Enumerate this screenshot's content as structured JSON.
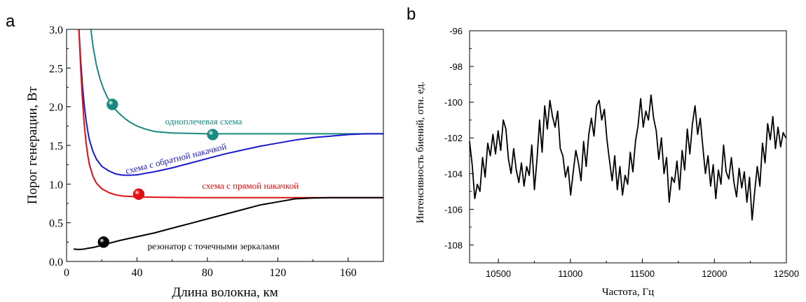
{
  "chart_data": [
    {
      "panel_label": "a",
      "type": "line",
      "xlabel": "Длина волокна, км",
      "ylabel": "Порог генерации, Вт",
      "xlim": [
        0,
        180
      ],
      "ylim": [
        0,
        3.0
      ],
      "xticks": [
        0,
        40,
        80,
        120,
        160
      ],
      "yticks": [
        "0.0",
        "0.5",
        "1.0",
        "1.5",
        "2.0",
        "2.5",
        "3.0"
      ],
      "grid": false,
      "series": [
        {
          "name": "одноплечевая схема",
          "color": "#1a8a80",
          "x": [
            13.8,
            15,
            17,
            19,
            21,
            23,
            25,
            27,
            30,
            33,
            36,
            40,
            45,
            50,
            55,
            60,
            70,
            80,
            90,
            100,
            120,
            140,
            160,
            180
          ],
          "y": [
            3.0,
            2.78,
            2.53,
            2.36,
            2.23,
            2.13,
            2.05,
            1.98,
            1.91,
            1.85,
            1.8,
            1.75,
            1.71,
            1.68,
            1.67,
            1.66,
            1.655,
            1.65,
            1.65,
            1.65,
            1.65,
            1.65,
            1.65,
            1.65
          ],
          "marker": {
            "x": 26,
            "y": 2.03
          },
          "marker2": {
            "x": 83,
            "y": 1.64
          }
        },
        {
          "name": "схема с обратной накачкой",
          "color": "#1a1acc",
          "x": [
            7,
            8,
            9,
            10,
            11,
            12,
            13,
            15,
            17,
            20,
            24,
            28,
            32,
            36,
            40,
            45,
            50,
            60,
            70,
            80,
            90,
            100,
            110,
            120,
            130,
            140,
            150,
            160,
            170,
            180
          ],
          "y": [
            3.0,
            2.6,
            2.28,
            2.03,
            1.84,
            1.69,
            1.57,
            1.42,
            1.32,
            1.23,
            1.17,
            1.13,
            1.115,
            1.115,
            1.12,
            1.14,
            1.16,
            1.21,
            1.27,
            1.33,
            1.39,
            1.44,
            1.49,
            1.53,
            1.57,
            1.6,
            1.62,
            1.64,
            1.65,
            1.65
          ]
        },
        {
          "name": "схема с прямой накачкой",
          "color": "#e01010",
          "x": [
            7,
            8,
            9,
            10,
            11,
            12,
            13,
            15,
            17,
            20,
            24,
            28,
            32,
            36,
            40,
            45,
            50,
            60,
            70,
            80,
            100,
            120,
            140,
            160,
            180
          ],
          "y": [
            3.0,
            2.5,
            2.1,
            1.78,
            1.55,
            1.38,
            1.25,
            1.1,
            1.01,
            0.94,
            0.89,
            0.86,
            0.845,
            0.84,
            0.835,
            0.832,
            0.83,
            0.828,
            0.826,
            0.825,
            0.825,
            0.825,
            0.825,
            0.825,
            0.825
          ],
          "marker": {
            "x": 41,
            "y": 0.87
          }
        },
        {
          "name": "резонатор  с точечными зеркалами",
          "color": "#000000",
          "x": [
            4,
            6,
            8,
            10,
            12,
            15,
            20,
            30,
            40,
            50,
            60,
            70,
            80,
            90,
            100,
            110,
            120,
            130,
            140,
            150,
            160,
            170,
            180
          ],
          "y": [
            0.16,
            0.155,
            0.155,
            0.16,
            0.17,
            0.18,
            0.21,
            0.27,
            0.32,
            0.37,
            0.43,
            0.49,
            0.55,
            0.61,
            0.67,
            0.73,
            0.77,
            0.81,
            0.82,
            0.825,
            0.825,
            0.825,
            0.825
          ],
          "marker": {
            "x": 21,
            "y": 0.25
          }
        }
      ],
      "annotations": [
        {
          "text": "одноплечевая схема",
          "x": 56,
          "y": 1.77,
          "color": "#1a8a80",
          "angle": 0
        },
        {
          "text": "схема с обратной накачкой",
          "x": 34,
          "y": 1.13,
          "color": "#1a1acc",
          "angle": -14
        },
        {
          "text": "схема с прямой накачкой",
          "x": 77,
          "y": 0.94,
          "color": "#e01010",
          "angle": 0
        },
        {
          "text": "резонатор  с точечными зеркалами",
          "x": 46,
          "y": 0.16,
          "color": "#000000",
          "angle": 0
        }
      ]
    },
    {
      "panel_label": "b",
      "type": "line",
      "xlabel": "Частота, Гц",
      "ylabel": "Интенсивность биений, отн. ед.",
      "xlim": [
        10300,
        12500
      ],
      "ylim": [
        -109,
        -96
      ],
      "xticks": [
        10500,
        11000,
        11500,
        12000,
        12500
      ],
      "yticks": [
        -96,
        -98,
        -100,
        -102,
        -104,
        -106,
        -108
      ],
      "grid": false,
      "series": [
        {
          "color": "#000000",
          "x": [
            10300,
            10318,
            10336,
            10354,
            10372,
            10390,
            10408,
            10426,
            10444,
            10462,
            10480,
            10498,
            10516,
            10534,
            10552,
            10570,
            10588,
            10606,
            10624,
            10642,
            10660,
            10678,
            10696,
            10714,
            10732,
            10750,
            10768,
            10786,
            10804,
            10822,
            10840,
            10858,
            10876,
            10894,
            10912,
            10930,
            10948,
            10966,
            10984,
            11002,
            11020,
            11038,
            11056,
            11074,
            11092,
            11110,
            11128,
            11146,
            11164,
            11182,
            11200,
            11218,
            11236,
            11254,
            11272,
            11290,
            11308,
            11326,
            11344,
            11362,
            11380,
            11398,
            11416,
            11434,
            11452,
            11470,
            11488,
            11506,
            11524,
            11542,
            11560,
            11578,
            11596,
            11614,
            11632,
            11650,
            11668,
            11686,
            11704,
            11722,
            11740,
            11758,
            11776,
            11794,
            11812,
            11830,
            11848,
            11866,
            11884,
            11902,
            11920,
            11938,
            11956,
            11974,
            11992,
            12010,
            12028,
            12046,
            12064,
            12082,
            12100,
            12118,
            12136,
            12154,
            12172,
            12190,
            12208,
            12226,
            12244,
            12262,
            12280,
            12298,
            12316,
            12334,
            12352,
            12370,
            12388,
            12406,
            12424,
            12442,
            12460,
            12478,
            12496
          ],
          "y": [
            -102.2,
            -103.5,
            -105.4,
            -104.6,
            -105.0,
            -103.1,
            -104.2,
            -102.3,
            -103.0,
            -101.8,
            -102.9,
            -101.6,
            -102.7,
            -101.0,
            -101.5,
            -103.2,
            -104.0,
            -102.6,
            -103.8,
            -104.5,
            -103.4,
            -104.7,
            -103.6,
            -104.1,
            -102.4,
            -104.9,
            -103.2,
            -101.0,
            -102.8,
            -100.2,
            -101.5,
            -99.9,
            -100.8,
            -101.4,
            -100.5,
            -102.6,
            -103.0,
            -104.2,
            -103.6,
            -105.2,
            -103.9,
            -102.7,
            -103.4,
            -104.4,
            -102.2,
            -103.6,
            -101.8,
            -100.9,
            -101.9,
            -100.2,
            -99.9,
            -101.0,
            -100.4,
            -102.1,
            -103.3,
            -104.4,
            -103.0,
            -104.9,
            -103.6,
            -105.2,
            -104.1,
            -104.6,
            -102.8,
            -103.9,
            -102.2,
            -101.3,
            -99.8,
            -101.4,
            -100.5,
            -101.0,
            -99.6,
            -100.9,
            -101.6,
            -103.2,
            -102.0,
            -104.0,
            -103.1,
            -105.6,
            -104.2,
            -104.5,
            -103.3,
            -104.9,
            -102.7,
            -103.8,
            -101.5,
            -102.9,
            -101.2,
            -100.2,
            -101.8,
            -100.9,
            -102.5,
            -104.0,
            -103.0,
            -104.7,
            -103.5,
            -105.4,
            -103.8,
            -104.6,
            -102.4,
            -103.9,
            -104.3,
            -103.1,
            -104.5,
            -105.3,
            -103.7,
            -104.8,
            -103.9,
            -105.6,
            -104.2,
            -106.6,
            -105.0,
            -103.6,
            -104.7,
            -102.3,
            -103.4,
            -101.2,
            -102.1,
            -100.8,
            -102.6,
            -101.4,
            -102.5,
            -101.7,
            -102.0
          ]
        }
      ]
    }
  ]
}
